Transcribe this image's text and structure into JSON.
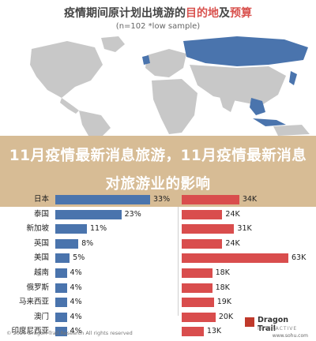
{
  "header": {
    "title_prefix": "疫情期间原计划出境游的",
    "title_highlight": "目的地",
    "title_mid": "及",
    "title_highlight2": "预算",
    "subtitle": "(n=102 *low sample)"
  },
  "banner": {
    "text": "11月疫情最新消息旅游，11月疫情最新消息对旅游业的影响"
  },
  "chart_data": {
    "type": "bar",
    "categories": [
      "日本",
      "泰国",
      "新加坡",
      "英国",
      "美国",
      "越南",
      "俄罗斯",
      "马来西亚",
      "澳门",
      "印度尼西亚"
    ],
    "series": [
      {
        "values": [
          33,
          23,
          11,
          8,
          5,
          4,
          4,
          4,
          4,
          4
        ],
        "labels": [
          "33%",
          "23%",
          "11%",
          "8%",
          "5%",
          "4%",
          "4%",
          "4%",
          "4%",
          "4%"
        ]
      },
      {
        "values": [
          34,
          24,
          31,
          24,
          63,
          18,
          18,
          19,
          20,
          13
        ],
        "labels": [
          "34K",
          "24K",
          "31K",
          "24K",
          "63K",
          "18K",
          "18K",
          "19K",
          "20K",
          "13K"
        ]
      }
    ],
    "colors": {
      "left": "#4a74ad",
      "right": "#d94d4d"
    }
  },
  "footer": {
    "copyright": "© 2020 Dragon Trail Research All rights reserved",
    "brand": "Dragon Trail",
    "brand_sub": "INTERACTIVE",
    "url": "www.sohu.com"
  }
}
